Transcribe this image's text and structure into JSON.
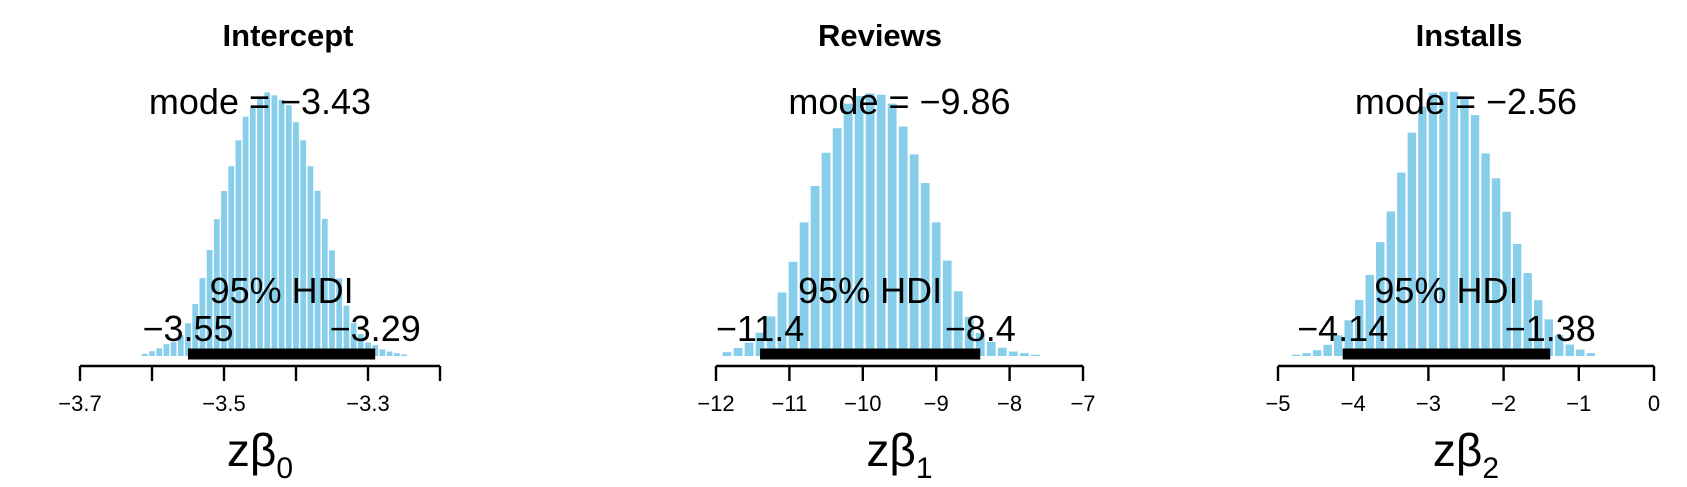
{
  "chart_data": [
    {
      "type": "bar",
      "title": "Intercept",
      "mode_label": "mode = −3.43",
      "hdi_label": "95% HDI",
      "hdi_low_label": "−3.55",
      "hdi_high_label": "−3.29",
      "hdi": [
        -3.55,
        -3.29
      ],
      "xlabel": "zβ",
      "xlabel_sub": "0",
      "xlim": [
        -3.7,
        -3.2
      ],
      "ticks": [
        -3.7,
        -3.6,
        -3.5,
        -3.4,
        -3.3,
        -3.2
      ],
      "tick_labels": [
        "−3.7",
        "",
        "−3.5",
        "",
        "−3.3",
        ""
      ],
      "bins": [
        -3.61,
        -3.6,
        -3.59,
        -3.58,
        -3.57,
        -3.56,
        -3.55,
        -3.54,
        -3.53,
        -3.52,
        -3.51,
        -3.5,
        -3.49,
        -3.48,
        -3.47,
        -3.46,
        -3.45,
        -3.44,
        -3.43,
        -3.42,
        -3.41,
        -3.4,
        -3.39,
        -3.38,
        -3.37,
        -3.36,
        -3.35,
        -3.34,
        -3.33,
        -3.32,
        -3.31,
        -3.3,
        -3.29,
        -3.28,
        -3.27,
        -3.26,
        -3.25
      ],
      "density": [
        0.7,
        1.5,
        2.4,
        3.7,
        4.3,
        6.6,
        10.3,
        16.3,
        24.4,
        33.2,
        42.9,
        51.7,
        59.5,
        67.6,
        75,
        78.2,
        80.6,
        82.6,
        81.7,
        80.3,
        78.6,
        73.3,
        67.6,
        59.5,
        51.8,
        43,
        33.1,
        24.3,
        15.8,
        10.3,
        6.9,
        4.2,
        3.4,
        2.1,
        1.4,
        0.9,
        0.5
      ]
    },
    {
      "type": "bar",
      "title": "Reviews",
      "mode_label": "mode = −9.86",
      "hdi_label": "95% HDI",
      "hdi_low_label": "−11.4",
      "hdi_high_label": "−8.4",
      "hdi": [
        -11.4,
        -8.4
      ],
      "xlabel": "zβ",
      "xlabel_sub": "1",
      "xlim": [
        -12,
        -7
      ],
      "ticks": [
        -12,
        -11,
        -10,
        -9,
        -8,
        -7
      ],
      "tick_labels": [
        "−12",
        "−11",
        "−10",
        "−9",
        "−8",
        "−7"
      ],
      "bins": [
        -11.85,
        -11.7,
        -11.55,
        -11.4,
        -11.25,
        -11.1,
        -10.95,
        -10.8,
        -10.65,
        -10.5,
        -10.35,
        -10.2,
        -10.05,
        -9.9,
        -9.75,
        -9.6,
        -9.45,
        -9.3,
        -9.15,
        -9,
        -8.85,
        -8.7,
        -8.55,
        -8.4,
        -8.25,
        -8.1,
        -7.95,
        -7.8,
        -7.65
      ],
      "density": [
        1.2,
        2.5,
        4.2,
        7.3,
        12.4,
        19.9,
        29.5,
        41.9,
        53.3,
        63.7,
        71.4,
        79.1,
        81.5,
        82.3,
        81.9,
        79.1,
        71.9,
        63.2,
        54.2,
        41.9,
        29.9,
        20.3,
        12.3,
        7.2,
        4.4,
        2.6,
        1.4,
        0.9,
        0.4
      ]
    },
    {
      "type": "bar",
      "title": "Installs",
      "mode_label": "mode = −2.56",
      "hdi_label": "95% HDI",
      "hdi_low_label": "−4.14",
      "hdi_high_label": "−1.38",
      "hdi": [
        -4.14,
        -1.38
      ],
      "xlabel": "zβ",
      "xlabel_sub": "2",
      "xlim": [
        -5,
        0
      ],
      "ticks": [
        -5,
        -4,
        -3,
        -2,
        -1,
        0
      ],
      "tick_labels": [
        "−5",
        "−4",
        "−3",
        "−2",
        "−1",
        "0"
      ],
      "bins": [
        -4.76,
        -4.62,
        -4.48,
        -4.34,
        -4.2,
        -4.06,
        -3.92,
        -3.78,
        -3.64,
        -3.5,
        -3.36,
        -3.22,
        -3.08,
        -2.94,
        -2.8,
        -2.66,
        -2.52,
        -2.38,
        -2.24,
        -2.1,
        -1.96,
        -1.82,
        -1.68,
        -1.54,
        -1.4,
        -1.26,
        -1.12,
        -0.98,
        -0.84
      ],
      "density": [
        0.4,
        0.9,
        1.8,
        3.5,
        6.5,
        11.2,
        17.6,
        25.4,
        35.7,
        45.3,
        57.5,
        70,
        78.2,
        82.5,
        82.8,
        82.8,
        81.1,
        75.5,
        63.5,
        55.7,
        45.2,
        35.1,
        26,
        17.5,
        11.5,
        6.6,
        3.6,
        2,
        0.9
      ]
    }
  ]
}
